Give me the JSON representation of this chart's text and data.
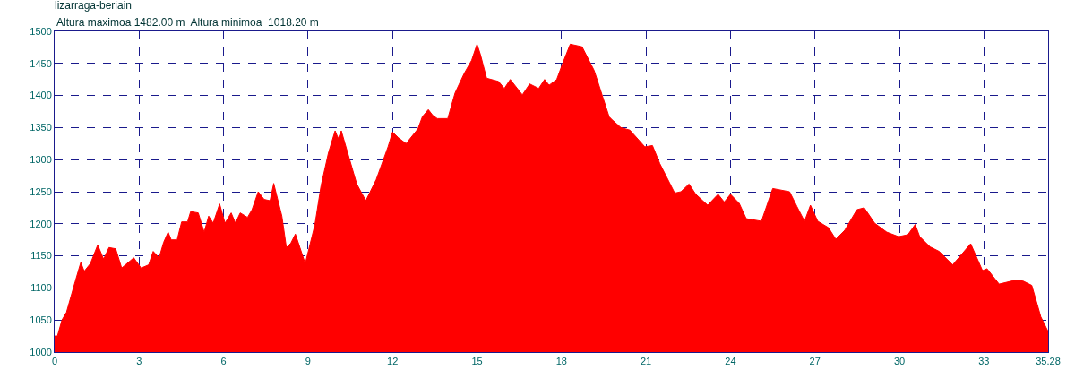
{
  "chart_data": {
    "type": "area",
    "title": "lizarraga-beriain",
    "subtitle": "Altura maximoa 1482.00 m  Altura minimoa  1018.20 m",
    "x": [
      0,
      0.1,
      0.26,
      0.42,
      0.73,
      0.93,
      1.05,
      1.27,
      1.53,
      1.74,
      1.93,
      2.17,
      2.38,
      2.81,
      3.07,
      3.34,
      3.5,
      3.71,
      3.87,
      4.03,
      4.14,
      4.35,
      4.51,
      4.72,
      4.83,
      5.1,
      5.31,
      5.47,
      5.63,
      5.86,
      6.05,
      6.27,
      6.42,
      6.59,
      6.85,
      7.01,
      7.23,
      7.44,
      7.65,
      7.78,
      7.91,
      8.07,
      8.23,
      8.39,
      8.55,
      8.71,
      8.9,
      9.03,
      9.24,
      9.46,
      9.72,
      9.96,
      10.07,
      10.18,
      10.41,
      10.73,
      11.05,
      11.42,
      11.84,
      12.0,
      12.21,
      12.48,
      12.9,
      13.06,
      13.27,
      13.43,
      13.59,
      13.96,
      14.22,
      14.54,
      14.81,
      15.0,
      15.12,
      15.34,
      15.76,
      15.97,
      16.18,
      16.61,
      16.87,
      17.19,
      17.4,
      17.56,
      17.83,
      18.04,
      18.31,
      18.73,
      19.16,
      19.69,
      19.8,
      20.11,
      20.43,
      20.96,
      21.23,
      21.49,
      22.02,
      22.24,
      22.53,
      22.77,
      23.19,
      23.56,
      23.78,
      24.0,
      24.31,
      24.56,
      25.1,
      25.5,
      26.1,
      26.36,
      26.63,
      26.84,
      27.1,
      27.48,
      27.74,
      28.06,
      28.49,
      28.75,
      29.12,
      29.55,
      29.97,
      30.3,
      30.56,
      30.72,
      31.09,
      31.41,
      31.89,
      32.53,
      32.95,
      33.11,
      33.54,
      34.01,
      34.38,
      34.7,
      35.02,
      35.28
    ],
    "values": [
      1025,
      1025,
      1050,
      1062,
      1110,
      1140,
      1126,
      1138,
      1167,
      1145,
      1163,
      1161,
      1131,
      1147,
      1131,
      1136,
      1157,
      1147,
      1171,
      1187,
      1175,
      1175,
      1203,
      1203,
      1219,
      1217,
      1187,
      1212,
      1201,
      1231,
      1201,
      1217,
      1201,
      1217,
      1210,
      1222,
      1250,
      1238,
      1236,
      1263,
      1240,
      1212,
      1163,
      1170,
      1184,
      1163,
      1138,
      1161,
      1198,
      1259,
      1310,
      1345,
      1333,
      1345,
      1310,
      1262,
      1236,
      1269,
      1320,
      1343,
      1334,
      1325,
      1348,
      1367,
      1378,
      1369,
      1364,
      1364,
      1404,
      1434,
      1455,
      1480,
      1464,
      1427,
      1422,
      1411,
      1425,
      1401,
      1418,
      1411,
      1425,
      1416,
      1425,
      1450,
      1480,
      1476,
      1439,
      1367,
      1362,
      1350,
      1346,
      1320,
      1322,
      1294,
      1248,
      1250,
      1262,
      1246,
      1229,
      1246,
      1234,
      1246,
      1232,
      1208,
      1204,
      1255,
      1250,
      1227,
      1204,
      1229,
      1204,
      1194,
      1176,
      1190,
      1222,
      1225,
      1201,
      1187,
      1180,
      1183,
      1199,
      1180,
      1164,
      1157,
      1136,
      1169,
      1127,
      1130,
      1106,
      1111,
      1111,
      1104,
      1055,
      1032
    ],
    "color": "#ff0000",
    "xlim": [
      0,
      35.28
    ],
    "ylim": [
      1000,
      1500
    ],
    "xticks": [
      0,
      3,
      6,
      9,
      12,
      15,
      18,
      21,
      24,
      27,
      30,
      33,
      35.28
    ],
    "yticks": [
      1000,
      1050,
      1100,
      1150,
      1200,
      1250,
      1300,
      1350,
      1400,
      1450,
      1500
    ],
    "grid": true
  }
}
